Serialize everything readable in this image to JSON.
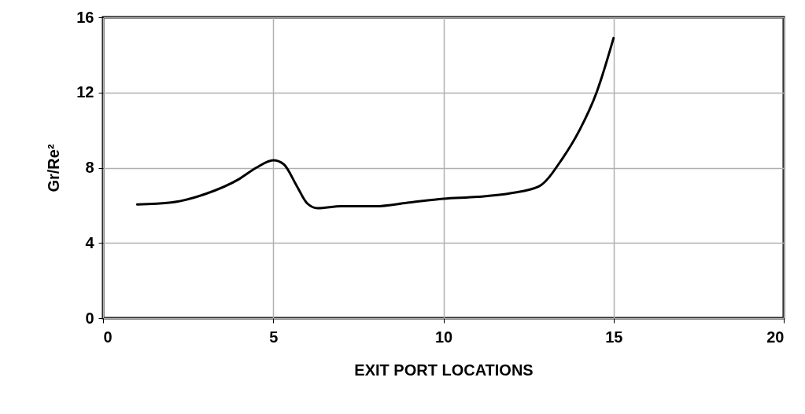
{
  "chart_data": {
    "type": "line",
    "xlabel": "EXIT PORT LOCATIONS",
    "ylabel": "Gr/Re²",
    "x": [
      1,
      2,
      3,
      4,
      4.5,
      5,
      5.3,
      5.7,
      6,
      6.3,
      7,
      8,
      9,
      10,
      11,
      12,
      12.8,
      13.5,
      14,
      14.5,
      15
    ],
    "series": [
      {
        "color": "#000000",
        "values": [
          6.05,
          6.15,
          6.6,
          7.4,
          8.0,
          8.4,
          8.2,
          7.0,
          6.1,
          5.85,
          5.95,
          5.95,
          6.15,
          6.35,
          6.45,
          6.65,
          7.0,
          8.5,
          10.0,
          12.0,
          14.9
        ]
      }
    ],
    "xlim": [
      0,
      20
    ],
    "xticks": [
      0,
      5,
      10,
      15,
      20
    ],
    "ylim": [
      0,
      16
    ],
    "yticks": [
      0,
      4,
      8,
      12,
      16
    ],
    "grid": true,
    "marker": "none",
    "line_style": "solid"
  }
}
